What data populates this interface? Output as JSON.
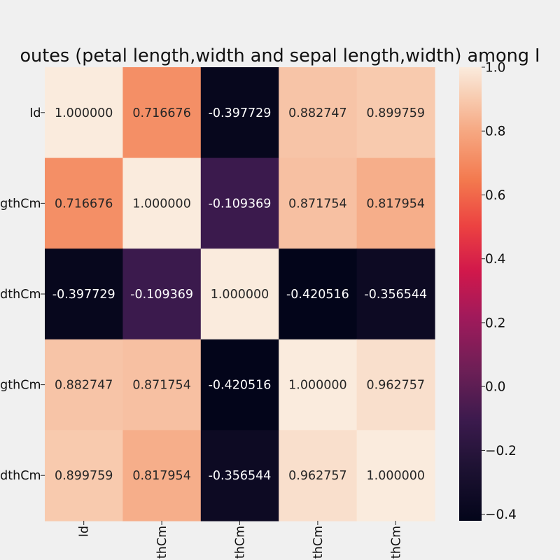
{
  "chart_data": {
    "type": "heatmap",
    "title": "outes (petal length,width and sepal length,width) among I",
    "row_labels": [
      "Id",
      "gthCm",
      "dthCm",
      "gthCm",
      "dthCm"
    ],
    "col_labels": [
      "Id",
      "thCm",
      "thCm",
      "thCm",
      "thCm"
    ],
    "matrix": [
      [
        1.0,
        0.716676,
        -0.397729,
        0.882747,
        0.899759
      ],
      [
        0.716676,
        1.0,
        -0.109369,
        0.871754,
        0.817954
      ],
      [
        -0.397729,
        -0.109369,
        1.0,
        -0.420516,
        -0.356544
      ],
      [
        0.882747,
        0.871754,
        -0.420516,
        1.0,
        0.962757
      ],
      [
        0.899759,
        0.817954,
        -0.356544,
        0.962757,
        1.0
      ]
    ],
    "cell_labels": [
      [
        "1.000000",
        "0.716676",
        "-0.397729",
        "0.882747",
        "0.899759"
      ],
      [
        "0.716676",
        "1.000000",
        "-0.109369",
        "0.871754",
        "0.817954"
      ],
      [
        "-0.397729",
        "-0.109369",
        "1.000000",
        "-0.420516",
        "-0.356544"
      ],
      [
        "0.882747",
        "0.871754",
        "-0.420516",
        "1.000000",
        "0.962757"
      ],
      [
        "0.899759",
        "0.817954",
        "-0.356544",
        "0.962757",
        "1.000000"
      ]
    ],
    "colorbar": {
      "range": [
        -0.420516,
        1.0
      ],
      "ticks": [
        "−0.4",
        "−0.2",
        "0.0",
        "0.2",
        "0.4",
        "0.6",
        "0.8",
        "1.0"
      ],
      "tick_values": [
        -0.4,
        -0.2,
        0.0,
        0.2,
        0.4,
        0.6,
        0.8,
        1.0
      ]
    },
    "colormap": "rocket",
    "background": "#f0f0f0"
  }
}
